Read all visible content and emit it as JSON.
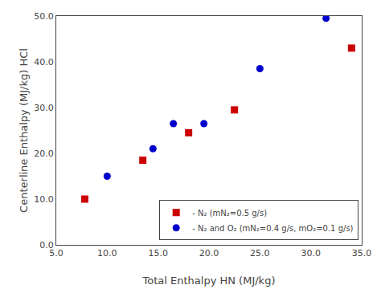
{
  "chart_data": {
    "type": "scatter",
    "x_label": "Total Enthalpy HN (MJ/kg)",
    "y_label": "Centerline Enthalpy (MJ/kg) HCl",
    "series": [
      {
        "name": "- N₂ (mN₂=0.5 g/s)",
        "color": "#CC0000",
        "marker": "square",
        "x": [
          7.8,
          13.5,
          18.0,
          22.5,
          34.0
        ],
        "values": [
          10.0,
          18.5,
          24.5,
          29.5,
          43.0
        ]
      },
      {
        "name": "- N₂ and O₂ (mN₂=0.4 g/s, mO₂=0.1 g/s)",
        "color": "#0000CC",
        "marker": "circle",
        "x": [
          10.0,
          14.5,
          16.5,
          19.5,
          25.0,
          31.5
        ],
        "values": [
          15.0,
          21.0,
          26.5,
          26.5,
          38.5,
          49.5
        ]
      }
    ],
    "xlim": [
      5.0,
      35.0
    ],
    "ylim": [
      0.0,
      50.0
    ],
    "xticks": [
      {
        "value": 5,
        "label": "5.0"
      },
      {
        "value": 10,
        "label": "10.0"
      },
      {
        "value": 15,
        "label": "15.0"
      },
      {
        "value": 20,
        "label": "20.0"
      },
      {
        "value": 25,
        "label": "25.0"
      },
      {
        "value": 30,
        "label": "30.0"
      },
      {
        "value": 35,
        "label": "35.0"
      }
    ],
    "yticks": [
      {
        "value": 0,
        "label": "0.0"
      },
      {
        "value": 10,
        "label": "10.0"
      },
      {
        "value": 20,
        "label": "20.0"
      },
      {
        "value": 30,
        "label": "30.0"
      },
      {
        "value": 40,
        "label": "40.0"
      },
      {
        "value": 50,
        "label": "50.0"
      }
    ],
    "grid": false,
    "legend": "lower right"
  }
}
